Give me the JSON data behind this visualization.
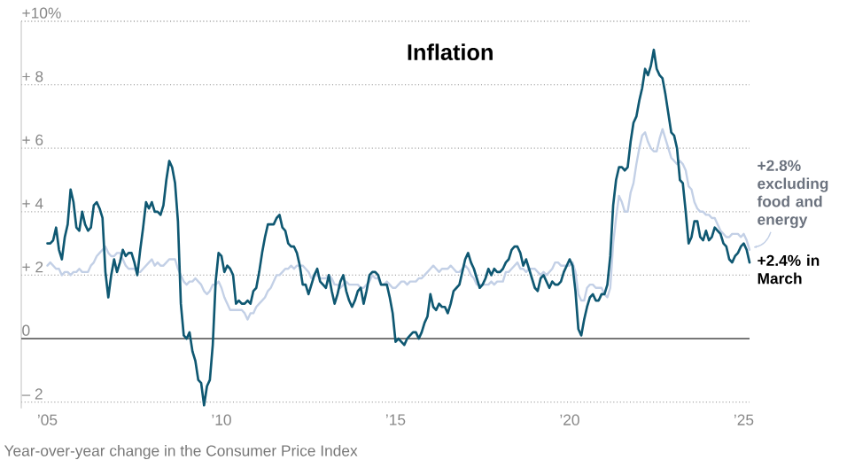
{
  "chart_data": {
    "type": "line",
    "title": "Inflation",
    "x": [
      "2005-01",
      "2005-02",
      "2005-03",
      "2005-04",
      "2005-05",
      "2005-06",
      "2005-07",
      "2005-08",
      "2005-09",
      "2005-10",
      "2005-11",
      "2005-12",
      "2006-01",
      "2006-02",
      "2006-03",
      "2006-04",
      "2006-05",
      "2006-06",
      "2006-07",
      "2006-08",
      "2006-09",
      "2006-10",
      "2006-11",
      "2006-12",
      "2007-01",
      "2007-02",
      "2007-03",
      "2007-04",
      "2007-05",
      "2007-06",
      "2007-07",
      "2007-08",
      "2007-09",
      "2007-10",
      "2007-11",
      "2007-12",
      "2008-01",
      "2008-02",
      "2008-03",
      "2008-04",
      "2008-05",
      "2008-06",
      "2008-07",
      "2008-08",
      "2008-09",
      "2008-10",
      "2008-11",
      "2008-12",
      "2009-01",
      "2009-02",
      "2009-03",
      "2009-04",
      "2009-05",
      "2009-06",
      "2009-07",
      "2009-08",
      "2009-09",
      "2009-10",
      "2009-11",
      "2009-12",
      "2010-01",
      "2010-02",
      "2010-03",
      "2010-04",
      "2010-05",
      "2010-06",
      "2010-07",
      "2010-08",
      "2010-09",
      "2010-10",
      "2010-11",
      "2010-12",
      "2011-01",
      "2011-02",
      "2011-03",
      "2011-04",
      "2011-05",
      "2011-06",
      "2011-07",
      "2011-08",
      "2011-09",
      "2011-10",
      "2011-11",
      "2011-12",
      "2012-01",
      "2012-02",
      "2012-03",
      "2012-04",
      "2012-05",
      "2012-06",
      "2012-07",
      "2012-08",
      "2012-09",
      "2012-10",
      "2012-11",
      "2012-12",
      "2013-01",
      "2013-02",
      "2013-03",
      "2013-04",
      "2013-05",
      "2013-06",
      "2013-07",
      "2013-08",
      "2013-09",
      "2013-10",
      "2013-11",
      "2013-12",
      "2014-01",
      "2014-02",
      "2014-03",
      "2014-04",
      "2014-05",
      "2014-06",
      "2014-07",
      "2014-08",
      "2014-09",
      "2014-10",
      "2014-11",
      "2014-12",
      "2015-01",
      "2015-02",
      "2015-03",
      "2015-04",
      "2015-05",
      "2015-06",
      "2015-07",
      "2015-08",
      "2015-09",
      "2015-10",
      "2015-11",
      "2015-12",
      "2016-01",
      "2016-02",
      "2016-03",
      "2016-04",
      "2016-05",
      "2016-06",
      "2016-07",
      "2016-08",
      "2016-09",
      "2016-10",
      "2016-11",
      "2016-12",
      "2017-01",
      "2017-02",
      "2017-03",
      "2017-04",
      "2017-05",
      "2017-06",
      "2017-07",
      "2017-08",
      "2017-09",
      "2017-10",
      "2017-11",
      "2017-12",
      "2018-01",
      "2018-02",
      "2018-03",
      "2018-04",
      "2018-05",
      "2018-06",
      "2018-07",
      "2018-08",
      "2018-09",
      "2018-10",
      "2018-11",
      "2018-12",
      "2019-01",
      "2019-02",
      "2019-03",
      "2019-04",
      "2019-05",
      "2019-06",
      "2019-07",
      "2019-08",
      "2019-09",
      "2019-10",
      "2019-11",
      "2019-12",
      "2020-01",
      "2020-02",
      "2020-03",
      "2020-04",
      "2020-05",
      "2020-06",
      "2020-07",
      "2020-08",
      "2020-09",
      "2020-10",
      "2020-11",
      "2020-12",
      "2021-01",
      "2021-02",
      "2021-03",
      "2021-04",
      "2021-05",
      "2021-06",
      "2021-07",
      "2021-08",
      "2021-09",
      "2021-10",
      "2021-11",
      "2021-12",
      "2022-01",
      "2022-02",
      "2022-03",
      "2022-04",
      "2022-05",
      "2022-06",
      "2022-07",
      "2022-08",
      "2022-09",
      "2022-10",
      "2022-11",
      "2022-12",
      "2023-01",
      "2023-02",
      "2023-03",
      "2023-04",
      "2023-05",
      "2023-06",
      "2023-07",
      "2023-08",
      "2023-09",
      "2023-10",
      "2023-11",
      "2023-12",
      "2024-01",
      "2024-02",
      "2024-03",
      "2024-04",
      "2024-05",
      "2024-06",
      "2024-07",
      "2024-08",
      "2024-09",
      "2024-10",
      "2024-11",
      "2024-12",
      "2025-01",
      "2025-02",
      "2025-03"
    ],
    "series": [
      {
        "color": "#c3d0e6",
        "values": [
          2.3,
          2.4,
          2.3,
          2.2,
          2.2,
          2.0,
          2.1,
          2.1,
          2.0,
          2.1,
          2.1,
          2.2,
          2.1,
          2.1,
          2.1,
          2.3,
          2.4,
          2.6,
          2.7,
          2.8,
          2.9,
          2.7,
          2.6,
          2.6,
          2.7,
          2.7,
          2.5,
          2.3,
          2.2,
          2.2,
          2.2,
          2.1,
          2.1,
          2.2,
          2.3,
          2.4,
          2.5,
          2.3,
          2.4,
          2.3,
          2.3,
          2.4,
          2.5,
          2.5,
          2.5,
          2.2,
          2.0,
          1.8,
          1.7,
          1.8,
          1.8,
          1.9,
          1.8,
          1.7,
          1.5,
          1.4,
          1.5,
          1.7,
          1.7,
          1.8,
          1.6,
          1.3,
          1.1,
          0.9,
          0.9,
          0.9,
          0.9,
          0.9,
          0.8,
          0.6,
          0.8,
          0.8,
          1.0,
          1.1,
          1.2,
          1.3,
          1.5,
          1.6,
          1.8,
          2.0,
          2.0,
          2.1,
          2.2,
          2.2,
          2.3,
          2.2,
          2.3,
          2.3,
          2.3,
          2.2,
          2.1,
          1.9,
          2.0,
          2.0,
          1.9,
          1.9,
          1.9,
          2.0,
          1.9,
          1.7,
          1.7,
          1.6,
          1.7,
          1.8,
          1.7,
          1.7,
          1.7,
          1.7,
          1.6,
          1.6,
          1.7,
          1.8,
          2.0,
          1.9,
          1.9,
          1.7,
          1.7,
          1.8,
          1.7,
          1.6,
          1.6,
          1.7,
          1.8,
          1.8,
          1.7,
          1.8,
          1.8,
          1.8,
          1.9,
          1.9,
          2.0,
          2.1,
          2.2,
          2.3,
          2.2,
          2.1,
          2.2,
          2.2,
          2.2,
          2.3,
          2.2,
          2.1,
          2.1,
          2.2,
          2.3,
          2.2,
          2.0,
          1.9,
          1.7,
          1.7,
          1.7,
          1.7,
          1.7,
          1.8,
          1.7,
          1.8,
          1.8,
          1.8,
          2.1,
          2.1,
          2.2,
          2.3,
          2.4,
          2.2,
          2.2,
          2.1,
          2.2,
          2.2,
          2.2,
          2.1,
          2.0,
          2.1,
          2.0,
          2.1,
          2.2,
          2.4,
          2.4,
          2.3,
          2.3,
          2.3,
          2.3,
          2.4,
          2.1,
          1.4,
          1.2,
          1.2,
          1.6,
          1.7,
          1.7,
          1.6,
          1.6,
          1.6,
          1.4,
          1.3,
          1.6,
          3.0,
          3.8,
          4.5,
          4.3,
          4.0,
          4.0,
          4.6,
          4.9,
          5.5,
          6.0,
          6.4,
          6.5,
          6.2,
          6.0,
          5.9,
          5.9,
          6.3,
          6.6,
          6.3,
          6.0,
          5.7,
          5.6,
          5.5,
          5.6,
          5.5,
          5.3,
          4.8,
          4.7,
          4.3,
          4.1,
          4.0,
          4.0,
          3.9,
          3.9,
          3.8,
          3.8,
          3.6,
          3.4,
          3.3,
          3.2,
          3.2,
          3.3,
          3.3,
          3.3,
          3.2,
          3.3,
          3.1,
          2.8
        ]
      },
      {
        "color": "#0f5872",
        "values": [
          3.0,
          3.0,
          3.1,
          3.5,
          2.8,
          2.5,
          3.2,
          3.6,
          4.7,
          4.3,
          3.5,
          3.4,
          4.0,
          3.6,
          3.4,
          3.5,
          4.2,
          4.3,
          4.1,
          3.8,
          2.1,
          1.3,
          2.0,
          2.5,
          2.1,
          2.4,
          2.8,
          2.6,
          2.7,
          2.7,
          2.4,
          2.0,
          2.8,
          3.5,
          4.3,
          4.1,
          4.3,
          4.0,
          4.0,
          3.9,
          4.2,
          5.0,
          5.6,
          5.4,
          4.9,
          3.7,
          1.1,
          0.1,
          0.0,
          0.2,
          -0.4,
          -0.7,
          -1.3,
          -1.4,
          -2.1,
          -1.5,
          -1.3,
          -0.2,
          1.8,
          2.7,
          2.6,
          2.1,
          2.3,
          2.2,
          2.0,
          1.1,
          1.2,
          1.1,
          1.1,
          1.2,
          1.1,
          1.5,
          1.6,
          2.1,
          2.7,
          3.2,
          3.6,
          3.6,
          3.6,
          3.8,
          3.9,
          3.5,
          3.4,
          3.0,
          2.9,
          2.9,
          2.7,
          2.3,
          1.7,
          1.7,
          1.4,
          1.7,
          2.0,
          2.2,
          1.8,
          1.7,
          1.6,
          2.0,
          1.5,
          1.1,
          1.4,
          1.8,
          2.0,
          1.5,
          1.2,
          1.0,
          1.2,
          1.5,
          1.6,
          1.1,
          1.5,
          2.0,
          2.1,
          2.1,
          2.0,
          1.7,
          1.7,
          1.7,
          1.3,
          0.8,
          -0.1,
          0.0,
          -0.1,
          -0.2,
          0.0,
          0.1,
          0.2,
          0.2,
          0.0,
          0.2,
          0.5,
          0.7,
          1.4,
          1.0,
          0.9,
          1.1,
          1.0,
          1.0,
          0.8,
          1.1,
          1.5,
          1.6,
          1.7,
          2.1,
          2.5,
          2.7,
          2.4,
          2.2,
          1.9,
          1.6,
          1.7,
          1.9,
          2.2,
          2.0,
          2.2,
          2.1,
          2.1,
          2.2,
          2.4,
          2.5,
          2.8,
          2.9,
          2.9,
          2.7,
          2.3,
          2.5,
          2.2,
          1.9,
          1.6,
          1.5,
          1.9,
          2.0,
          1.8,
          1.6,
          1.8,
          1.7,
          1.7,
          1.8,
          2.1,
          2.3,
          2.5,
          2.3,
          1.5,
          0.3,
          0.1,
          0.6,
          1.0,
          1.3,
          1.4,
          1.2,
          1.2,
          1.4,
          1.4,
          1.7,
          2.6,
          4.2,
          5.0,
          5.4,
          5.4,
          5.3,
          5.4,
          6.2,
          6.8,
          7.0,
          7.5,
          7.9,
          8.5,
          8.3,
          8.6,
          9.1,
          8.5,
          8.3,
          8.2,
          7.7,
          7.1,
          6.5,
          6.4,
          6.0,
          5.0,
          4.9,
          4.0,
          3.0,
          3.2,
          3.7,
          3.7,
          3.2,
          3.1,
          3.4,
          3.1,
          3.2,
          3.5,
          3.4,
          3.3,
          3.0,
          2.9,
          2.5,
          2.4,
          2.6,
          2.7,
          2.9,
          3.0,
          2.8,
          2.4
        ]
      }
    ],
    "xlim": [
      "2004-04",
      "2025-03"
    ],
    "xticks": [
      {
        "value": "2005-01",
        "label": "’05"
      },
      {
        "value": "2010-01",
        "label": "’10"
      },
      {
        "value": "2015-01",
        "label": "’15"
      },
      {
        "value": "2020-01",
        "label": "’20"
      },
      {
        "value": "2025-01",
        "label": "’25"
      }
    ],
    "ylim": [
      -2.2,
      10
    ],
    "yticks": [
      {
        "value": -2,
        "label": "– 2"
      },
      0,
      {
        "value": 2,
        "label": "+ 2"
      },
      {
        "value": 4,
        "label": "+ 4"
      },
      {
        "value": 6,
        "label": "+ 6"
      },
      {
        "value": 8,
        "label": "+ 8"
      },
      {
        "value": 10,
        "label": "+10%"
      }
    ],
    "grid": "y",
    "ref_lines": [
      {
        "axis": "y",
        "value": 0,
        "color": "#777777"
      }
    ],
    "annotations": [
      {
        "text": "+2.8% excluding food and energy",
        "x": "2025-03",
        "y": 2.8
      },
      {
        "text": "+2.4% in March",
        "x": "2025-03",
        "y": 2.4
      },
      "Year-over-year change in the Consumer Price Index"
    ]
  }
}
